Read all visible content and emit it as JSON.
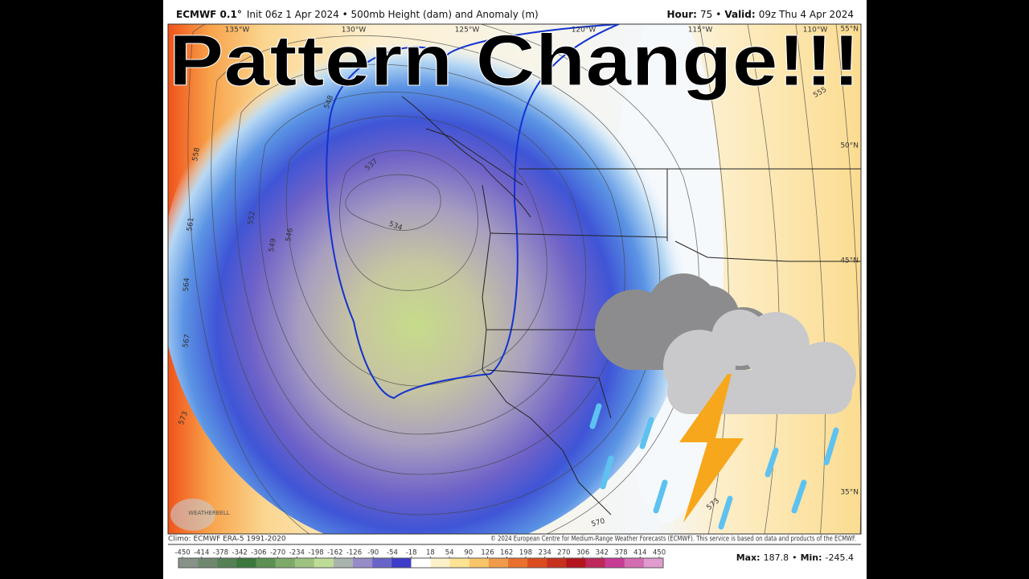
{
  "header": {
    "model": "ECMWF 0.1°",
    "info": "Init 06z 1 Apr 2024 • 500mb Height (dam) and Anomaly (m)",
    "right": [
      {
        "label": "Hour:",
        "value": "75"
      },
      {
        "label": "Valid:",
        "value": "09z Thu 4 Apr 2024"
      }
    ],
    "separator": "•"
  },
  "overlay_title": "Pattern Change!!!",
  "map": {
    "longitude_labels": [
      "135°W",
      "130°W",
      "125°W",
      "120°W",
      "115°W",
      "110°W"
    ],
    "latitude_labels": [
      "55°N",
      "50°N",
      "45°N",
      "35°N"
    ],
    "contour_labels": [
      "558",
      "561",
      "564",
      "567",
      "573",
      "552",
      "549",
      "546",
      "548",
      "537",
      "534",
      "555",
      "573",
      "570"
    ],
    "watermark": "WEATHERBELL"
  },
  "footer": {
    "climo": "Climo: ECMWF ERA-5 1991-2020",
    "copyright": "© 2024 European Centre for Medium-Range Weather Forecasts (ECMWF). This service is based on data and products of the ECMWF."
  },
  "colorbar": {
    "ticks": [
      -450,
      -414,
      -378,
      -342,
      -306,
      -270,
      -234,
      -198,
      -162,
      -126,
      -90,
      -54,
      -18,
      18,
      54,
      90,
      126,
      162,
      198,
      234,
      270,
      306,
      342,
      378,
      414,
      450
    ]
  },
  "stats": [
    {
      "label": "Max:",
      "value": 187.8
    },
    {
      "label": "Min:",
      "value": -245.4
    }
  ]
}
